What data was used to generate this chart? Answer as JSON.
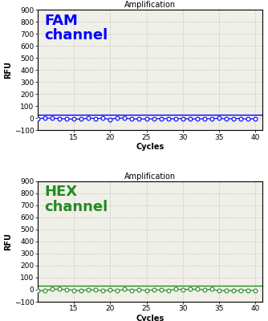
{
  "title": "Amplification",
  "xlabel": "Cycles",
  "ylabel": "RFU",
  "xlim": [
    10,
    41
  ],
  "ylim": [
    -100,
    900
  ],
  "yticks": [
    -100,
    0,
    100,
    200,
    300,
    400,
    500,
    600,
    700,
    800,
    900
  ],
  "xticks": [
    15,
    20,
    25,
    30,
    35,
    40
  ],
  "fam_label": "FAM\nchannel",
  "fam_color": "#0000FF",
  "hex_label": "HEX\nchannel",
  "hex_color": "#228B22",
  "threshold_y": 30,
  "background_color": "#f0f0e8",
  "grid_color": "#c8c8c8",
  "title_fontsize": 7,
  "label_fontsize": 7,
  "channel_fontsize": 13,
  "tick_fontsize": 6.5
}
